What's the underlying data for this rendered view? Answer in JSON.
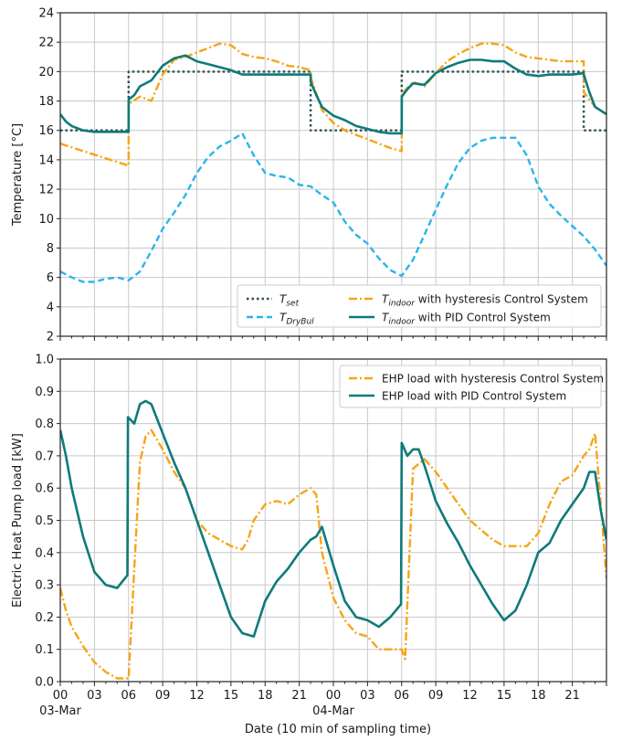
{
  "figure": {
    "xlabel": "Date (10 min of sampling time)",
    "x_tick_labels": [
      "00",
      "03",
      "06",
      "09",
      "12",
      "15",
      "18",
      "21",
      "00",
      "03",
      "06",
      "09",
      "12",
      "15",
      "18",
      "21"
    ],
    "date_labels": [
      "03-Mar",
      "04-Mar"
    ]
  },
  "chart_data": [
    {
      "type": "line",
      "ylabel": "Temperature [°C]",
      "xlim": [
        0,
        48
      ],
      "ylim": [
        2,
        24
      ],
      "y_ticks": [
        2,
        4,
        6,
        8,
        10,
        12,
        14,
        16,
        18,
        20,
        22,
        24
      ],
      "grid": true,
      "legend_placement": "bottom-right",
      "legend": [
        {
          "key": "tset",
          "label": "T",
          "sub": "set"
        },
        {
          "key": "tdry",
          "label": "T",
          "sub": "DryBul"
        },
        {
          "key": "thys",
          "label": "T",
          "sub": "indoor",
          "suffix": " with hysteresis Control System"
        },
        {
          "key": "tpid",
          "label": "T",
          "sub": "indoor",
          "suffix": " with PID Control System"
        }
      ],
      "series": [
        {
          "key": "tset",
          "color": "#2f4f4f",
          "dash": "dot",
          "x": [
            0,
            6,
            6,
            22,
            22,
            30,
            30,
            46,
            46,
            48
          ],
          "y": [
            16,
            16,
            20,
            20,
            16,
            16,
            20,
            20,
            16,
            16
          ]
        },
        {
          "key": "tdry",
          "color": "#29b6e8",
          "dash": "dash",
          "x": [
            0,
            1,
            2,
            3,
            4,
            5,
            6,
            7,
            8,
            9,
            10,
            11,
            12,
            13,
            14,
            15,
            16,
            17,
            18,
            19,
            20,
            21,
            22,
            23,
            24,
            25,
            26,
            27,
            28,
            29,
            30,
            31,
            32,
            33,
            34,
            35,
            36,
            37,
            38,
            39,
            40,
            41,
            42,
            43,
            44,
            45,
            46,
            47,
            48
          ],
          "y": [
            6.4,
            6.0,
            5.7,
            5.7,
            5.9,
            6.0,
            5.8,
            6.4,
            7.8,
            9.3,
            10.4,
            11.6,
            13.1,
            14.2,
            14.9,
            15.3,
            15.8,
            14.3,
            13.1,
            12.9,
            12.8,
            12.3,
            12.2,
            11.6,
            11.1,
            9.8,
            8.9,
            8.3,
            7.3,
            6.5,
            6.1,
            7.2,
            8.9,
            10.6,
            12.3,
            13.8,
            14.8,
            15.3,
            15.5,
            15.5,
            15.5,
            14.3,
            12.2,
            11.0,
            10.2,
            9.5,
            8.8,
            7.9,
            6.8
          ]
        },
        {
          "key": "thys",
          "color": "#f5a516",
          "dash": "dashdot",
          "x": [
            0,
            2,
            4,
            6,
            6.01,
            7,
            8,
            9,
            10,
            11,
            12,
            13,
            14,
            15,
            16,
            17,
            18,
            19,
            20,
            21,
            22,
            22.01,
            23,
            24,
            25,
            26,
            27,
            28,
            29,
            30,
            30.01,
            31,
            32,
            33,
            34,
            35,
            36,
            37,
            38,
            39,
            40,
            41,
            42,
            43,
            44,
            45,
            46,
            46.01,
            47,
            48
          ],
          "y": [
            15.1,
            14.6,
            14.1,
            13.6,
            17.8,
            18.3,
            18.0,
            19.8,
            20.8,
            21.0,
            21.3,
            21.6,
            21.9,
            21.8,
            21.2,
            21.0,
            20.9,
            20.7,
            20.4,
            20.3,
            20.1,
            19.6,
            17.4,
            16.5,
            16.0,
            15.7,
            15.4,
            15.1,
            14.8,
            14.6,
            18.5,
            19.3,
            19.0,
            19.9,
            20.7,
            21.2,
            21.6,
            21.9,
            21.9,
            21.8,
            21.3,
            21.0,
            20.9,
            20.8,
            20.7,
            20.7,
            20.7,
            18.6,
            17.6,
            17.1
          ]
        },
        {
          "key": "tpid",
          "color": "#0e7a7a",
          "dash": "solid",
          "x": [
            0,
            0.5,
            1,
            2,
            3,
            4,
            5,
            6,
            6.01,
            6.5,
            7,
            8,
            9,
            10,
            11,
            12,
            13,
            14,
            15,
            16,
            17,
            18,
            19,
            20,
            21,
            22,
            22.01,
            22.5,
            23,
            24,
            25,
            26,
            27,
            28,
            29,
            30,
            30.01,
            30.5,
            31,
            32,
            33,
            34,
            35,
            36,
            37,
            38,
            39,
            40,
            41,
            42,
            43,
            44,
            45,
            46,
            46.01,
            46.5,
            47,
            48
          ],
          "y": [
            17.1,
            16.6,
            16.3,
            16.0,
            15.9,
            15.9,
            15.9,
            15.9,
            18.1,
            18.4,
            19.0,
            19.4,
            20.4,
            20.9,
            21.1,
            20.7,
            20.5,
            20.3,
            20.1,
            19.8,
            19.8,
            19.8,
            19.8,
            19.8,
            19.8,
            19.8,
            19.3,
            18.4,
            17.6,
            17.0,
            16.7,
            16.3,
            16.1,
            15.9,
            15.8,
            15.8,
            18.3,
            18.8,
            19.2,
            19.1,
            19.9,
            20.3,
            20.6,
            20.8,
            20.8,
            20.7,
            20.7,
            20.2,
            19.8,
            19.7,
            19.8,
            19.8,
            19.8,
            19.9,
            19.8,
            18.6,
            17.6,
            17.1
          ]
        }
      ]
    },
    {
      "type": "line",
      "ylabel": "Electric Heat Pump load [kW]",
      "xlim": [
        0,
        48
      ],
      "ylim": [
        0.0,
        1.0
      ],
      "y_ticks": [
        0.0,
        0.1,
        0.2,
        0.3,
        0.4,
        0.5,
        0.6,
        0.7,
        0.8,
        0.9,
        1.0
      ],
      "grid": true,
      "legend_placement": "top-right",
      "legend": [
        {
          "key": "ehys",
          "label": "EHP load with hysteresis Control System"
        },
        {
          "key": "epid",
          "label": "EHP load with PID Control System"
        }
      ],
      "series": [
        {
          "key": "ehys",
          "color": "#f5a516",
          "dash": "dashdot",
          "x": [
            0,
            0.5,
            1,
            2,
            3,
            4,
            5,
            6,
            6.5,
            7,
            7.5,
            8,
            9,
            10,
            11,
            12,
            13,
            14,
            15,
            16,
            16.5,
            17,
            18,
            19,
            20,
            21,
            22,
            22.5,
            23,
            24,
            25,
            26,
            27,
            28,
            29,
            30,
            30.3,
            31,
            32,
            33,
            34,
            35,
            36,
            37,
            38,
            39,
            40,
            41,
            42,
            43,
            44,
            45,
            46,
            46.5,
            47,
            47.5,
            48
          ],
          "y": [
            0.29,
            0.22,
            0.17,
            0.11,
            0.06,
            0.03,
            0.01,
            0.01,
            0.35,
            0.68,
            0.76,
            0.78,
            0.72,
            0.65,
            0.6,
            0.5,
            0.46,
            0.44,
            0.42,
            0.41,
            0.44,
            0.5,
            0.55,
            0.56,
            0.55,
            0.58,
            0.6,
            0.58,
            0.4,
            0.26,
            0.19,
            0.15,
            0.14,
            0.1,
            0.1,
            0.1,
            0.07,
            0.66,
            0.69,
            0.65,
            0.6,
            0.55,
            0.5,
            0.47,
            0.44,
            0.42,
            0.42,
            0.42,
            0.46,
            0.55,
            0.62,
            0.64,
            0.7,
            0.72,
            0.77,
            0.55,
            0.32
          ]
        },
        {
          "key": "epid",
          "color": "#0e7a7a",
          "dash": "solid",
          "x": [
            0,
            0.5,
            1,
            2,
            3,
            4,
            5,
            5.9,
            5.95,
            6.5,
            7,
            7.5,
            8,
            9,
            10,
            11,
            12,
            13,
            14,
            15,
            16,
            17,
            18,
            19,
            20,
            21,
            22,
            22.5,
            23,
            24,
            25,
            26,
            27,
            28,
            29,
            29.95,
            30,
            30.5,
            31,
            31.5,
            32,
            33,
            34,
            35,
            36,
            37,
            38,
            39,
            40,
            41,
            42,
            43,
            44,
            45,
            46,
            46.5,
            47,
            47.5,
            48
          ],
          "y": [
            0.78,
            0.7,
            0.6,
            0.45,
            0.34,
            0.3,
            0.29,
            0.33,
            0.82,
            0.8,
            0.86,
            0.87,
            0.86,
            0.77,
            0.68,
            0.6,
            0.5,
            0.4,
            0.3,
            0.2,
            0.15,
            0.14,
            0.25,
            0.31,
            0.35,
            0.4,
            0.44,
            0.45,
            0.48,
            0.36,
            0.25,
            0.2,
            0.19,
            0.17,
            0.2,
            0.24,
            0.74,
            0.7,
            0.72,
            0.72,
            0.67,
            0.56,
            0.49,
            0.43,
            0.36,
            0.3,
            0.24,
            0.19,
            0.22,
            0.3,
            0.4,
            0.43,
            0.5,
            0.55,
            0.6,
            0.65,
            0.65,
            0.53,
            0.44
          ]
        }
      ]
    }
  ]
}
